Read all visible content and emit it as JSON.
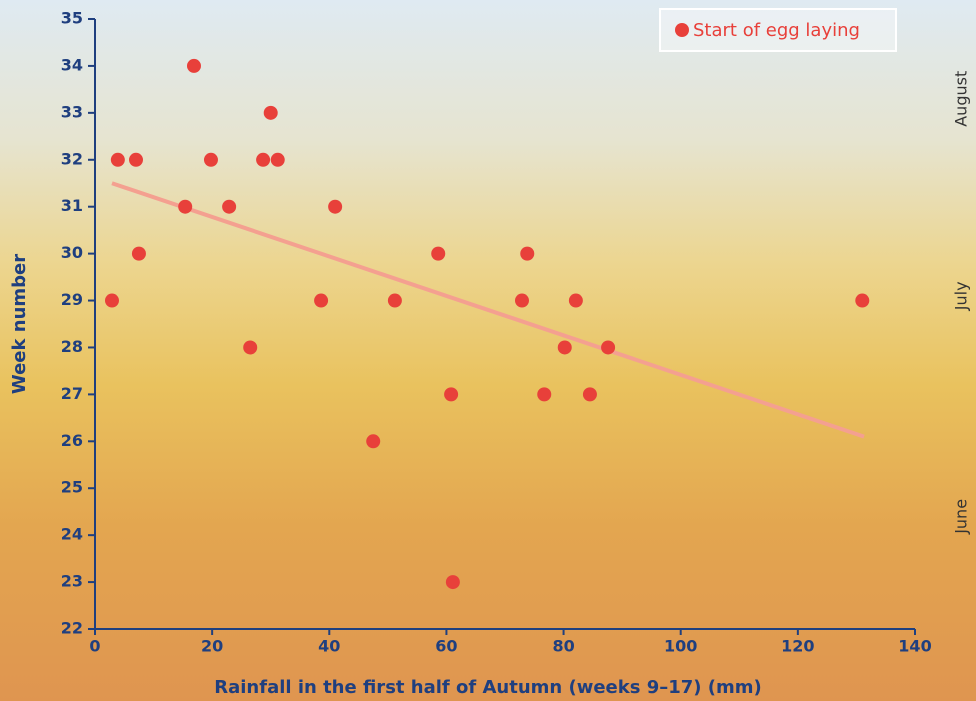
{
  "chart_data": {
    "type": "scatter",
    "xlabel": "Rainfall in the first half of Autumn (weeks 9–17) (mm)",
    "ylabel": "Week number",
    "xlim": [
      0,
      140
    ],
    "xticks": [
      0,
      20,
      40,
      60,
      80,
      100,
      120,
      140
    ],
    "ylim": [
      22,
      35
    ],
    "yticks": [
      22,
      23,
      24,
      25,
      26,
      27,
      28,
      29,
      30,
      31,
      32,
      33,
      34,
      35
    ],
    "month_ticks": [
      {
        "value": 33.3,
        "label": "August"
      },
      {
        "value": 29.1,
        "label": "July"
      },
      {
        "value": 24.4,
        "label": "June"
      }
    ],
    "legend": "top-right",
    "series": [
      {
        "name": "Start of egg laying",
        "color": "#e8403a",
        "x": [
          2.9,
          3.9,
          7.0,
          7.5,
          15.4,
          16.9,
          19.8,
          22.9,
          26.5,
          28.7,
          30.0,
          31.2,
          38.6,
          41.0,
          47.5,
          51.2,
          58.6,
          60.8,
          61.1,
          72.9,
          73.8,
          76.7,
          80.2,
          82.1,
          84.5,
          87.6,
          131.0
        ],
        "values": [
          29,
          32,
          32,
          30,
          31,
          34,
          32,
          31,
          28,
          32,
          33,
          32,
          29,
          31,
          26,
          29,
          30,
          27,
          23,
          29,
          30,
          27,
          28,
          29,
          27,
          28,
          29
        ]
      }
    ],
    "trendline": {
      "color": "#f4a090",
      "x": [
        2.9,
        131.3
      ],
      "values": [
        31.5,
        26.1
      ]
    }
  }
}
